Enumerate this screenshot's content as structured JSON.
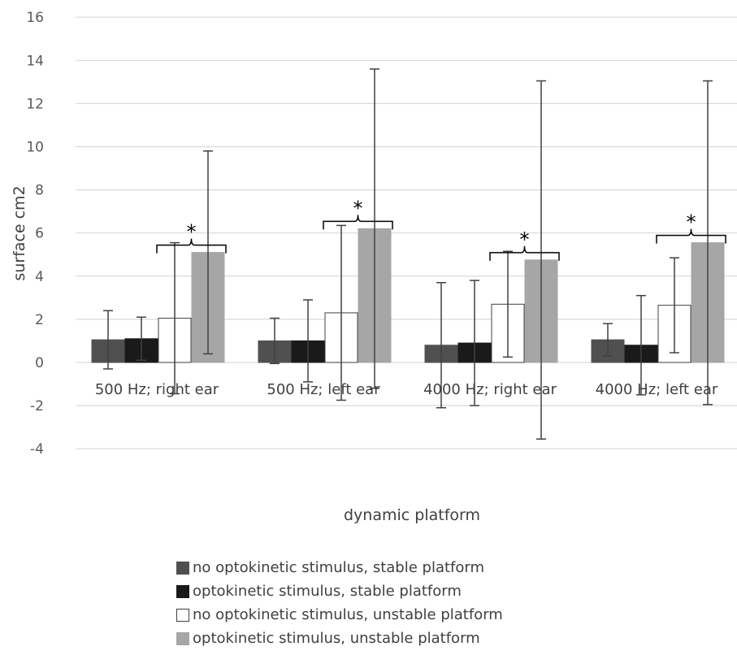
{
  "chart_data": {
    "type": "bar",
    "xlabel": "dynamic platform",
    "ylabel": "surface cm2",
    "ylim": [
      -4,
      16
    ],
    "yticks": [
      -4,
      -2,
      0,
      2,
      4,
      6,
      8,
      10,
      12,
      14,
      16
    ],
    "grid": true,
    "legend_position": "bottom",
    "categories": [
      "500 Hz; right ear",
      "500 Hz; left ear",
      "4000 Hz; right ear",
      "4000 Hz; left ear"
    ],
    "significance_marker": "*",
    "series": [
      {
        "name": "no optokinetic stimulus, stable platform",
        "color": "#505050",
        "border": "#505050",
        "values": [
          1.05,
          1.0,
          0.8,
          1.05
        ],
        "error": [
          1.35,
          1.05,
          2.9,
          0.75
        ]
      },
      {
        "name": "optokinetic stimulus, stable platform",
        "color": "#1a1a1a",
        "border": "#1a1a1a",
        "values": [
          1.1,
          1.0,
          0.9,
          0.8
        ],
        "error": [
          1.0,
          1.9,
          2.9,
          2.3
        ]
      },
      {
        "name": "no optokinetic stimulus, unstable platform",
        "color": "#ffffff",
        "border": "#404040",
        "values": [
          2.05,
          2.3,
          2.7,
          2.65
        ],
        "error": [
          3.5,
          4.05,
          2.45,
          2.2
        ]
      },
      {
        "name": "optokinetic stimulus, unstable platform",
        "color": "#a6a6a6",
        "border": "#a6a6a6",
        "values": [
          5.1,
          6.2,
          4.75,
          5.55
        ],
        "error": [
          4.7,
          7.4,
          8.3,
          7.5
        ]
      }
    ]
  }
}
